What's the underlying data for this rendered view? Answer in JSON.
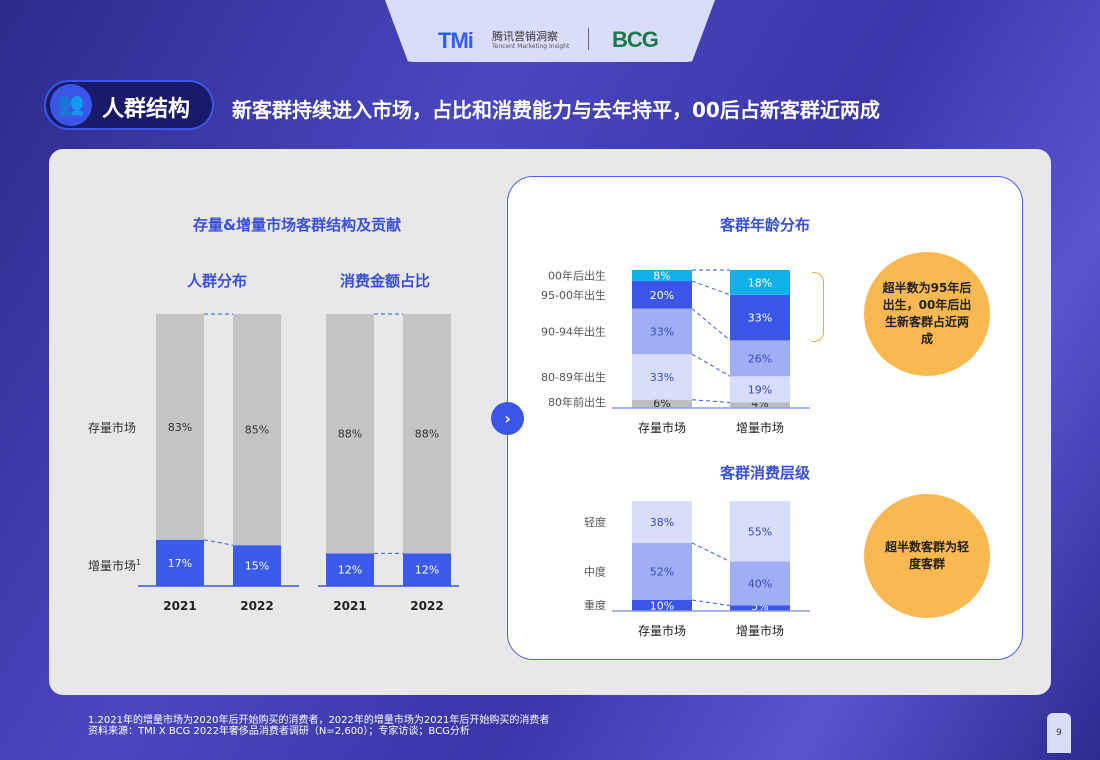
{
  "header": {
    "logo_tmi": "TMi",
    "logo_tmi_cn": "腾讯营销洞察",
    "logo_tmi_en": "Tencent Marketing Insight",
    "logo_bcg": "BCG",
    "section_icon": "people-icon",
    "section": "人群结构",
    "headline": "新客群持续进入市场，占比和消费能力与去年持平，00后占新客群近两成"
  },
  "left": {
    "title": "存量&增量市场客群结构及贡献",
    "row_labels": [
      "存量市场",
      "增量市场"
    ],
    "footnote_mark": "1"
  },
  "right": {
    "callout_age": "超半数为95年后出生，00年后出生新客群占近两成",
    "callout_level": "超半数客群为轻度客群"
  },
  "chart_data": [
    {
      "type": "bar",
      "stacked": true,
      "title": "人群分布",
      "categories": [
        "2021",
        "2022"
      ],
      "series": [
        {
          "name": "增量市场",
          "values": [
            17,
            15
          ],
          "color": "#3b5bec"
        },
        {
          "name": "存量市场",
          "values": [
            83,
            85
          ],
          "color": "#c4c4c4"
        }
      ]
    },
    {
      "type": "bar",
      "stacked": true,
      "title": "消费金额占比",
      "categories": [
        "2021",
        "2022"
      ],
      "series": [
        {
          "name": "增量市场",
          "values": [
            12,
            12
          ],
          "color": "#3b5bec"
        },
        {
          "name": "存量市场",
          "values": [
            88,
            88
          ],
          "color": "#c4c4c4"
        }
      ]
    },
    {
      "type": "bar",
      "stacked": true,
      "title": "客群年龄分布",
      "categories": [
        "存量市场",
        "增量市场"
      ],
      "series": [
        {
          "name": "80年前出生",
          "values": [
            6,
            4
          ],
          "color": "#bdbdbd"
        },
        {
          "name": "80-89年出生",
          "values": [
            33,
            19
          ],
          "color": "#d7ddfb"
        },
        {
          "name": "90-94年出生",
          "values": [
            33,
            26
          ],
          "color": "#a0aef5"
        },
        {
          "name": "95-00年出生",
          "values": [
            20,
            33
          ],
          "color": "#3a56e8"
        },
        {
          "name": "00年后出生",
          "values": [
            8,
            18
          ],
          "color": "#12b0e8"
        }
      ]
    },
    {
      "type": "bar",
      "stacked": true,
      "title": "客群消费层级",
      "categories": [
        "存量市场",
        "增量市场"
      ],
      "series": [
        {
          "name": "重度",
          "values": [
            10,
            5
          ],
          "color": "#3a56e8"
        },
        {
          "name": "中度",
          "values": [
            52,
            40
          ],
          "color": "#a0aef5"
        },
        {
          "name": "轻度",
          "values": [
            38,
            55
          ],
          "color": "#d7ddfb"
        }
      ]
    }
  ],
  "footer": {
    "note": "1.2021年的增量市场为2020年后开始购买的消费者，2022年的增量市场为2021年后开始购买的消费者",
    "source": "资料来源：TMI X BCG 2022年奢侈品消费者调研（N=2,600）；专家访谈；BCG分析",
    "page": "9"
  }
}
